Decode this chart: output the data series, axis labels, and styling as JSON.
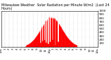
{
  "title": "Milwaukee Weather  Solar Radiation per Minute W/m2  (Last 24 Hours)",
  "background_color": "#ffffff",
  "plot_bg_color": "#ffffff",
  "grid_color": "#999999",
  "bar_color": "#ff0000",
  "ylim": [
    0,
    1000
  ],
  "yticks": [
    100,
    200,
    300,
    400,
    500,
    600,
    700,
    800,
    900,
    1000
  ],
  "ylabel_fontsize": 3.0,
  "xlabel_fontsize": 3.0,
  "title_fontsize": 3.5,
  "num_points": 1440,
  "x_tick_positions": [
    0,
    60,
    120,
    180,
    240,
    300,
    360,
    420,
    480,
    540,
    600,
    660,
    720,
    780,
    840,
    900,
    960,
    1020,
    1080,
    1140,
    1200,
    1260,
    1320,
    1380,
    1440
  ],
  "x_tick_labels": [
    "12a",
    "1",
    "2",
    "3",
    "4",
    "5",
    "6",
    "7",
    "8",
    "9",
    "10",
    "11",
    "12p",
    "1",
    "2",
    "3",
    "4",
    "5",
    "6",
    "7",
    "8",
    "9",
    "10",
    "11",
    "12a"
  ]
}
